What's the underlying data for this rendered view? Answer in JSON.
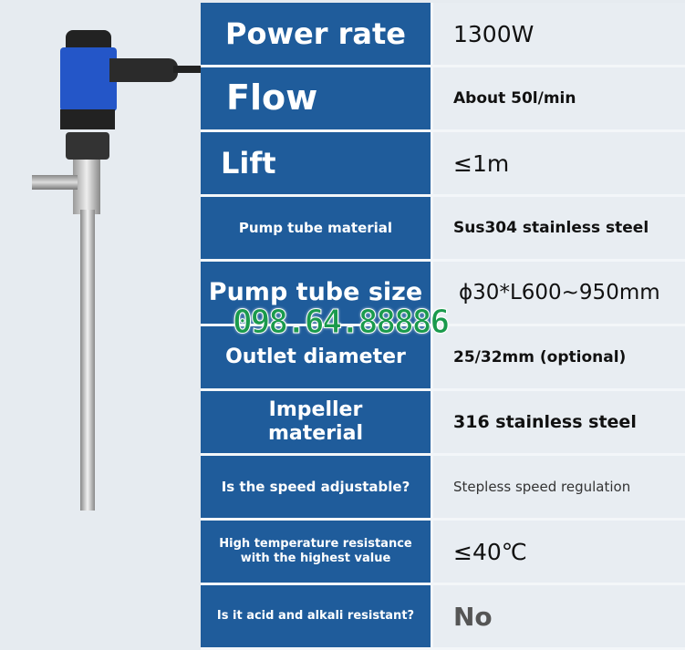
{
  "specs": [
    {
      "label": "Power rate",
      "value": "1300W"
    },
    {
      "label": "Flow",
      "value": "About 50l/min"
    },
    {
      "label": "Lift",
      "value": "≤1m"
    },
    {
      "label": "Pump tube material",
      "value": "Sus304 stainless steel"
    },
    {
      "label": "Pump tube size",
      "value": "ϕ30*L600~950mm"
    },
    {
      "label": "Outlet diameter",
      "value": "25/32mm (optional)"
    },
    {
      "label": "Impeller material",
      "value": "316 stainless steel"
    },
    {
      "label": "Is the speed adjustable?",
      "value": "Stepless speed regulation"
    },
    {
      "label": "High temperature resistance with the highest value",
      "value": "≤40℃"
    },
    {
      "label": "Is it acid and alkali resistant?",
      "value": "No"
    }
  ],
  "watermark": "098.64.88886",
  "colors": {
    "header_blue": "#1f5c9b",
    "watermark_green": "#1a9a4c"
  }
}
